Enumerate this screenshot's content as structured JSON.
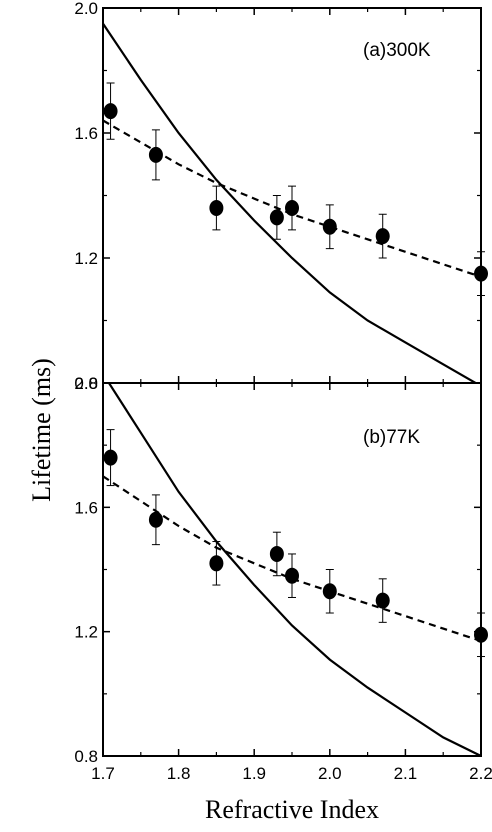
{
  "chart_data": [
    {
      "type": "scatter",
      "panel_label": "(a)300K",
      "xlabel": "Refractive Index",
      "ylabel": "Lifetime (ms)",
      "xlim": [
        1.7,
        2.2
      ],
      "ylim": [
        0.8,
        2.0
      ],
      "xticks": [
        "1.7",
        "1.8",
        "1.9",
        "2.0",
        "2.1",
        "2.2"
      ],
      "yticks": [
        "0.8",
        "1.2",
        "1.6",
        "2.0"
      ],
      "series": [
        {
          "style": "markers-with-error-bars",
          "x": [
            1.71,
            1.77,
            1.85,
            1.93,
            1.95,
            2.0,
            2.07,
            2.2
          ],
          "y": [
            1.67,
            1.53,
            1.36,
            1.33,
            1.36,
            1.3,
            1.27,
            1.15
          ],
          "err": [
            0.09,
            0.08,
            0.07,
            0.07,
            0.07,
            0.07,
            0.07,
            0.07
          ]
        },
        {
          "style": "dashed-line",
          "x": [
            1.7,
            1.75,
            1.8,
            1.85,
            1.9,
            1.95,
            2.0,
            2.05,
            2.1,
            2.15,
            2.2
          ],
          "y": [
            1.64,
            1.57,
            1.5,
            1.44,
            1.39,
            1.34,
            1.3,
            1.26,
            1.22,
            1.18,
            1.14
          ]
        },
        {
          "style": "solid-line",
          "x": [
            1.7,
            1.75,
            1.8,
            1.85,
            1.9,
            1.95,
            2.0,
            2.05,
            2.1,
            2.15,
            2.2
          ],
          "y": [
            1.95,
            1.77,
            1.6,
            1.45,
            1.32,
            1.2,
            1.09,
            1.0,
            0.93,
            0.86,
            0.79
          ]
        }
      ]
    },
    {
      "type": "scatter",
      "panel_label": "(b)77K",
      "xlabel": "Refractive Index",
      "ylabel": "Lifetime (ms)",
      "xlim": [
        1.7,
        2.2
      ],
      "ylim": [
        0.8,
        2.0
      ],
      "xticks": [
        "1.7",
        "1.8",
        "1.9",
        "2.0",
        "2.1",
        "2.2"
      ],
      "yticks": [
        "0.8",
        "1.2",
        "1.6",
        "2.0"
      ],
      "series": [
        {
          "style": "markers-with-error-bars",
          "x": [
            1.71,
            1.77,
            1.85,
            1.93,
            1.95,
            2.0,
            2.07,
            2.2
          ],
          "y": [
            1.76,
            1.56,
            1.42,
            1.45,
            1.38,
            1.33,
            1.3,
            1.19
          ],
          "err": [
            0.09,
            0.08,
            0.07,
            0.07,
            0.07,
            0.07,
            0.07,
            0.07
          ]
        },
        {
          "style": "dashed-line",
          "x": [
            1.7,
            1.75,
            1.8,
            1.85,
            1.9,
            1.95,
            2.0,
            2.05,
            2.1,
            2.15,
            2.2
          ],
          "y": [
            1.7,
            1.62,
            1.54,
            1.47,
            1.42,
            1.37,
            1.33,
            1.29,
            1.25,
            1.21,
            1.17
          ]
        },
        {
          "style": "solid-line",
          "x": [
            1.7,
            1.75,
            1.8,
            1.85,
            1.9,
            1.95,
            2.0,
            2.05,
            2.1,
            2.15,
            2.2
          ],
          "y": [
            2.03,
            1.84,
            1.65,
            1.49,
            1.35,
            1.22,
            1.11,
            1.02,
            0.94,
            0.86,
            0.8
          ]
        }
      ]
    }
  ]
}
